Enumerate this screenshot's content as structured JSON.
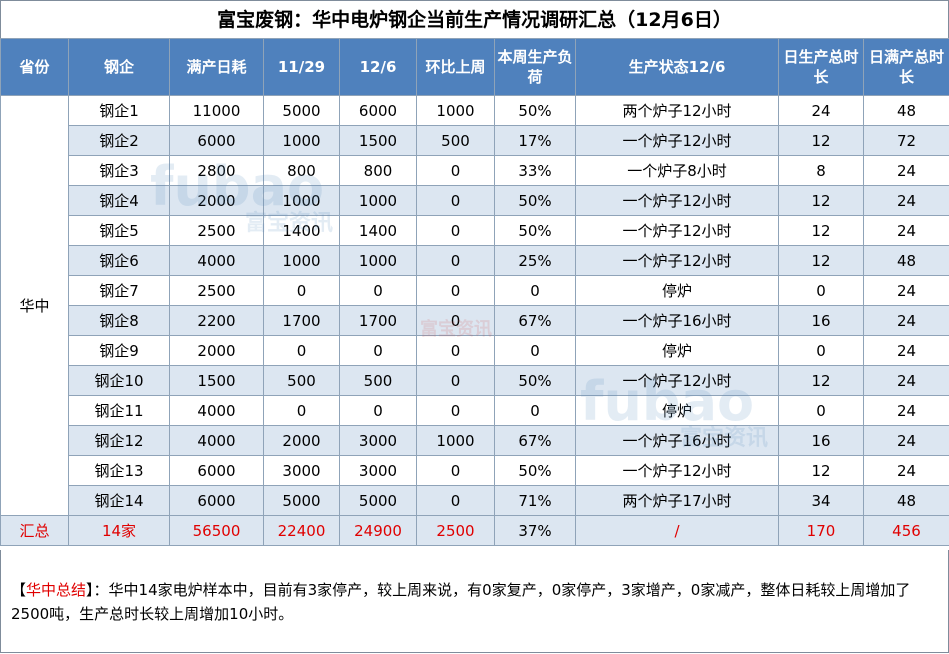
{
  "title": "富宝废钢：华中电炉钢企当前生产情况调研汇总（12月6日）",
  "headers": [
    "省份",
    "钢企",
    "满产日耗",
    "11/29",
    "12/6",
    "环比上周",
    "本周生产负荷",
    "生产状态12/6",
    "日生产总时长",
    "日满产总时长"
  ],
  "province": "华中",
  "rows": [
    [
      "钢企1",
      "11000",
      "5000",
      "6000",
      "1000",
      "50%",
      "两个炉子12小时",
      "24",
      "48"
    ],
    [
      "钢企2",
      "6000",
      "1000",
      "1500",
      "500",
      "17%",
      "一个炉子12小时",
      "12",
      "72"
    ],
    [
      "钢企3",
      "2800",
      "800",
      "800",
      "0",
      "33%",
      "一个炉子8小时",
      "8",
      "24"
    ],
    [
      "钢企4",
      "2000",
      "1000",
      "1000",
      "0",
      "50%",
      "一个炉子12小时",
      "12",
      "24"
    ],
    [
      "钢企5",
      "2500",
      "1400",
      "1400",
      "0",
      "50%",
      "一个炉子12小时",
      "12",
      "24"
    ],
    [
      "钢企6",
      "4000",
      "1000",
      "1000",
      "0",
      "25%",
      "一个炉子12小时",
      "12",
      "48"
    ],
    [
      "钢企7",
      "2500",
      "0",
      "0",
      "0",
      "0",
      "停炉",
      "0",
      "24"
    ],
    [
      "钢企8",
      "2200",
      "1700",
      "1700",
      "0",
      "67%",
      "一个炉子16小时",
      "16",
      "24"
    ],
    [
      "钢企9",
      "2000",
      "0",
      "0",
      "0",
      "0",
      "停炉",
      "0",
      "24"
    ],
    [
      "钢企10",
      "1500",
      "500",
      "500",
      "0",
      "50%",
      "一个炉子12小时",
      "12",
      "24"
    ],
    [
      "钢企11",
      "4000",
      "0",
      "0",
      "0",
      "0",
      "停炉",
      "0",
      "24"
    ],
    [
      "钢企12",
      "4000",
      "2000",
      "3000",
      "1000",
      "67%",
      "一个炉子16小时",
      "16",
      "24"
    ],
    [
      "钢企13",
      "6000",
      "3000",
      "3000",
      "0",
      "50%",
      "一个炉子12小时",
      "12",
      "24"
    ],
    [
      "钢企14",
      "6000",
      "5000",
      "5000",
      "0",
      "71%",
      "两个炉子17小时",
      "34",
      "48"
    ]
  ],
  "total": [
    "汇总",
    "14家",
    "56500",
    "22400",
    "24900",
    "2500",
    "37%",
    "/",
    "170",
    "456"
  ],
  "summary": {
    "label": "华中总结",
    "text": "：华中14家电炉样本中，目前有3家停产，较上周来说，有0家复产，0家停产，3家增产，0家减产，整体日耗较上周增加了2500吨，生产总时长较上周增加10小时。"
  },
  "watermark": {
    "brand_en": "fubao",
    "brand_cn": "富宝资讯"
  }
}
